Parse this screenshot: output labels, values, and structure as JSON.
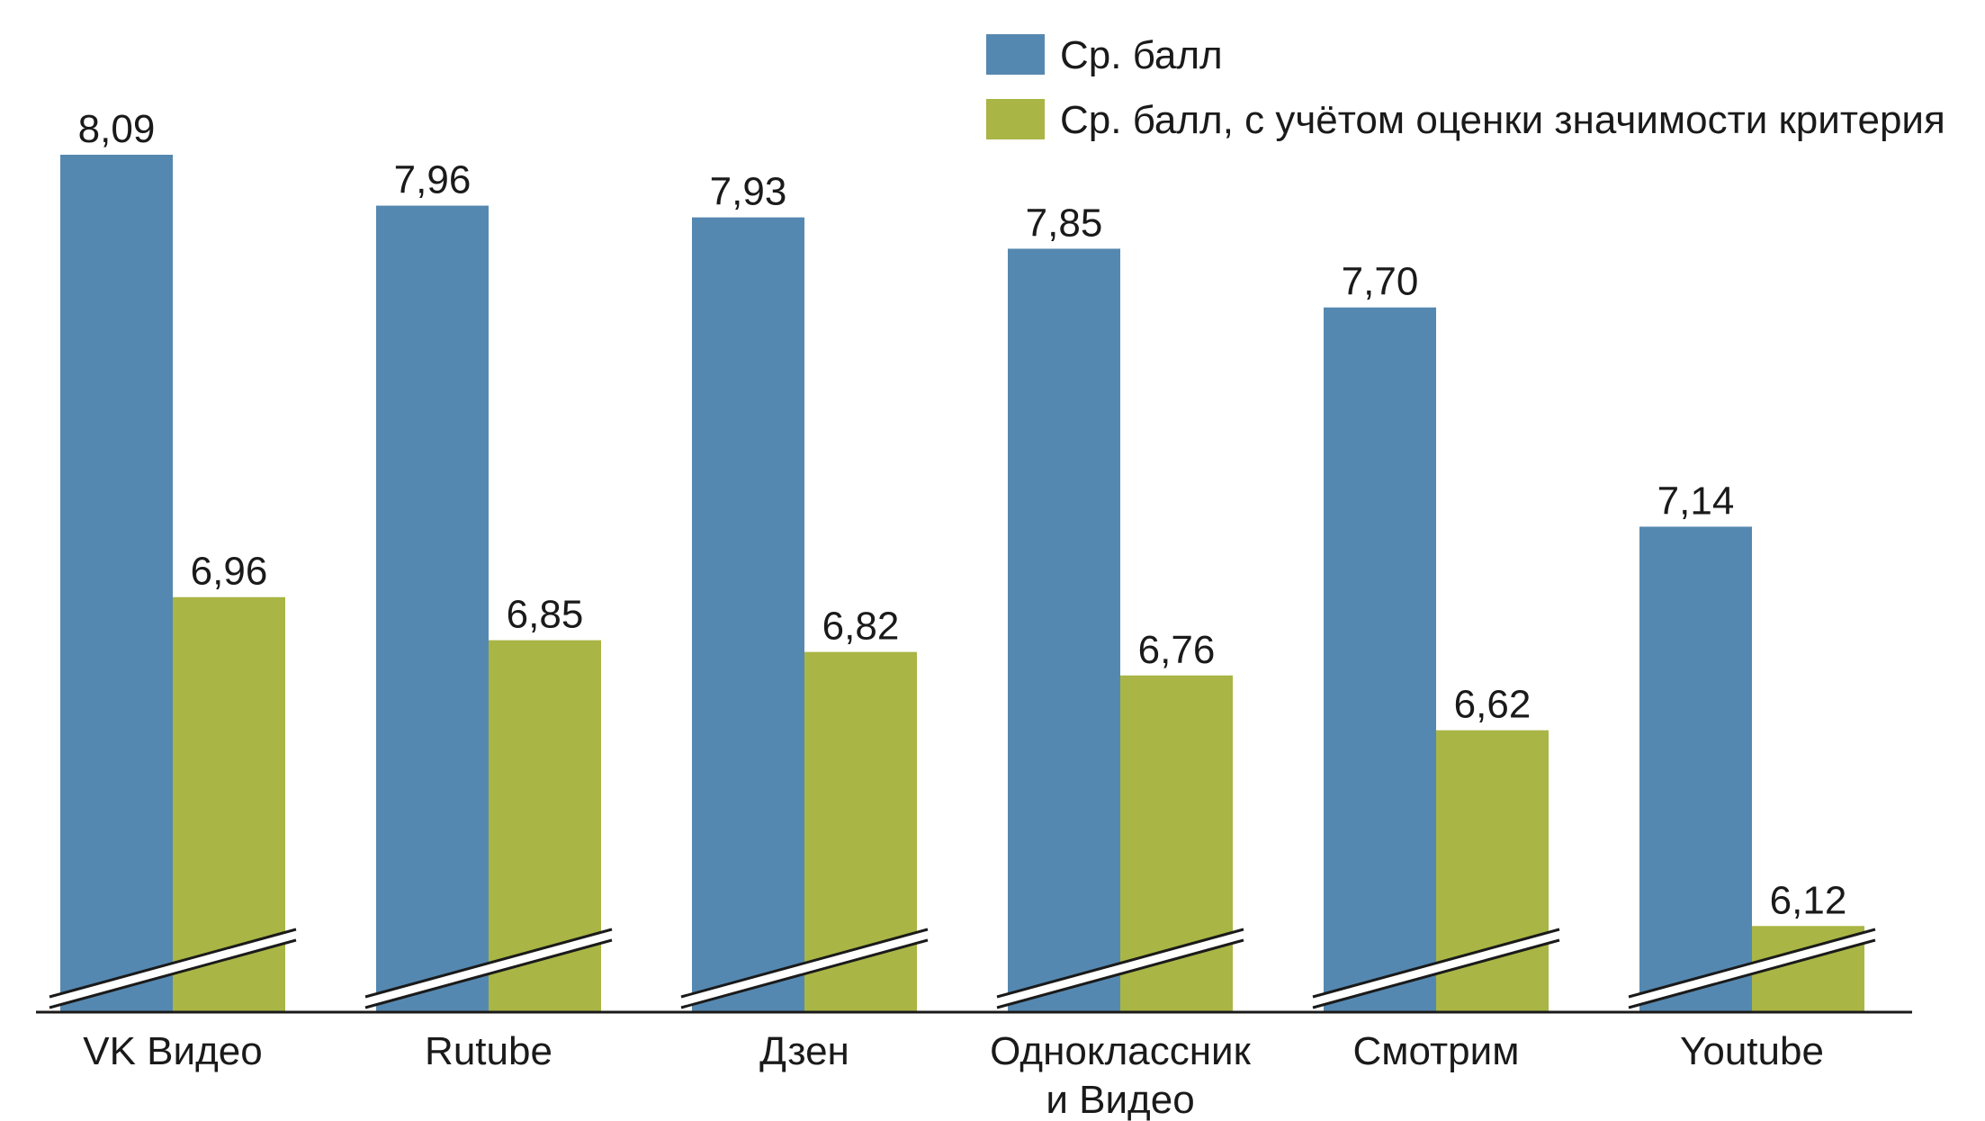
{
  "chart_data": {
    "type": "bar",
    "categories": [
      "VK Видео",
      "Rutube",
      "Дзен",
      "Одноклассник и Видео",
      "Смотрим",
      "Youtube"
    ],
    "category_lines": [
      [
        "VK Видео"
      ],
      [
        "Rutube"
      ],
      [
        "Дзен"
      ],
      [
        "Одноклассник",
        "и Видео"
      ],
      [
        "Смотрим"
      ],
      [
        "Youtube"
      ]
    ],
    "series": [
      {
        "name": "Ср. балл",
        "color": "#5588b0",
        "values": [
          8.09,
          7.96,
          7.93,
          7.85,
          7.7,
          7.14
        ],
        "labels": [
          "8,09",
          "7,96",
          "7,93",
          "7,85",
          "7,70",
          "7,14"
        ]
      },
      {
        "name": "Ср. балл, с учётом оценки значимости критерия",
        "color": "#a9b545",
        "values": [
          6.96,
          6.85,
          6.82,
          6.76,
          6.62,
          6.12
        ],
        "labels": [
          "6,96",
          "6,85",
          "6,82",
          "6,76",
          "6,62",
          "6,12"
        ]
      }
    ],
    "ylim": [
      5.9,
      8.2
    ],
    "axis_break": true,
    "legend_position": "top-right",
    "grid": false,
    "title": "",
    "xlabel": "",
    "ylabel": ""
  }
}
